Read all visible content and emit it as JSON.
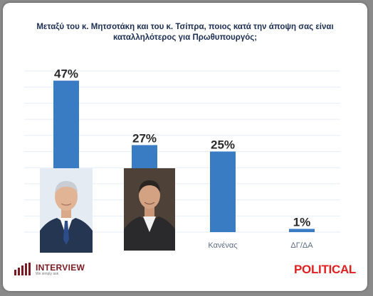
{
  "title_lines": [
    "Μεταξύ του κ. Μητσοτάκη και του κ. Τσίπρα, ποιος κατά την άποψη σας είναι",
    "καταλληλότερος για Πρωθυπουργός;"
  ],
  "colors": {
    "bar": "#3a7cc4",
    "title": "#1c2e52",
    "gridline": "#e6eef7",
    "interview_brand": "#7a1a22",
    "political_brand": "#e02020"
  },
  "chart_data": {
    "type": "bar",
    "categories": [
      "",
      "",
      "Κανένας",
      "ΔΓ/ΔΑ"
    ],
    "values": [
      47,
      27,
      25,
      1
    ],
    "value_labels": [
      "47%",
      "27%",
      "25%",
      "1%"
    ],
    "ylim": [
      0,
      50
    ],
    "grid": true,
    "legend": false
  },
  "logos": {
    "left": {
      "brand": "INTERVIEW",
      "tagline": "We simply ask",
      "icon": "bar-graph-icon"
    },
    "right": {
      "brand": "POLITICAL"
    }
  }
}
